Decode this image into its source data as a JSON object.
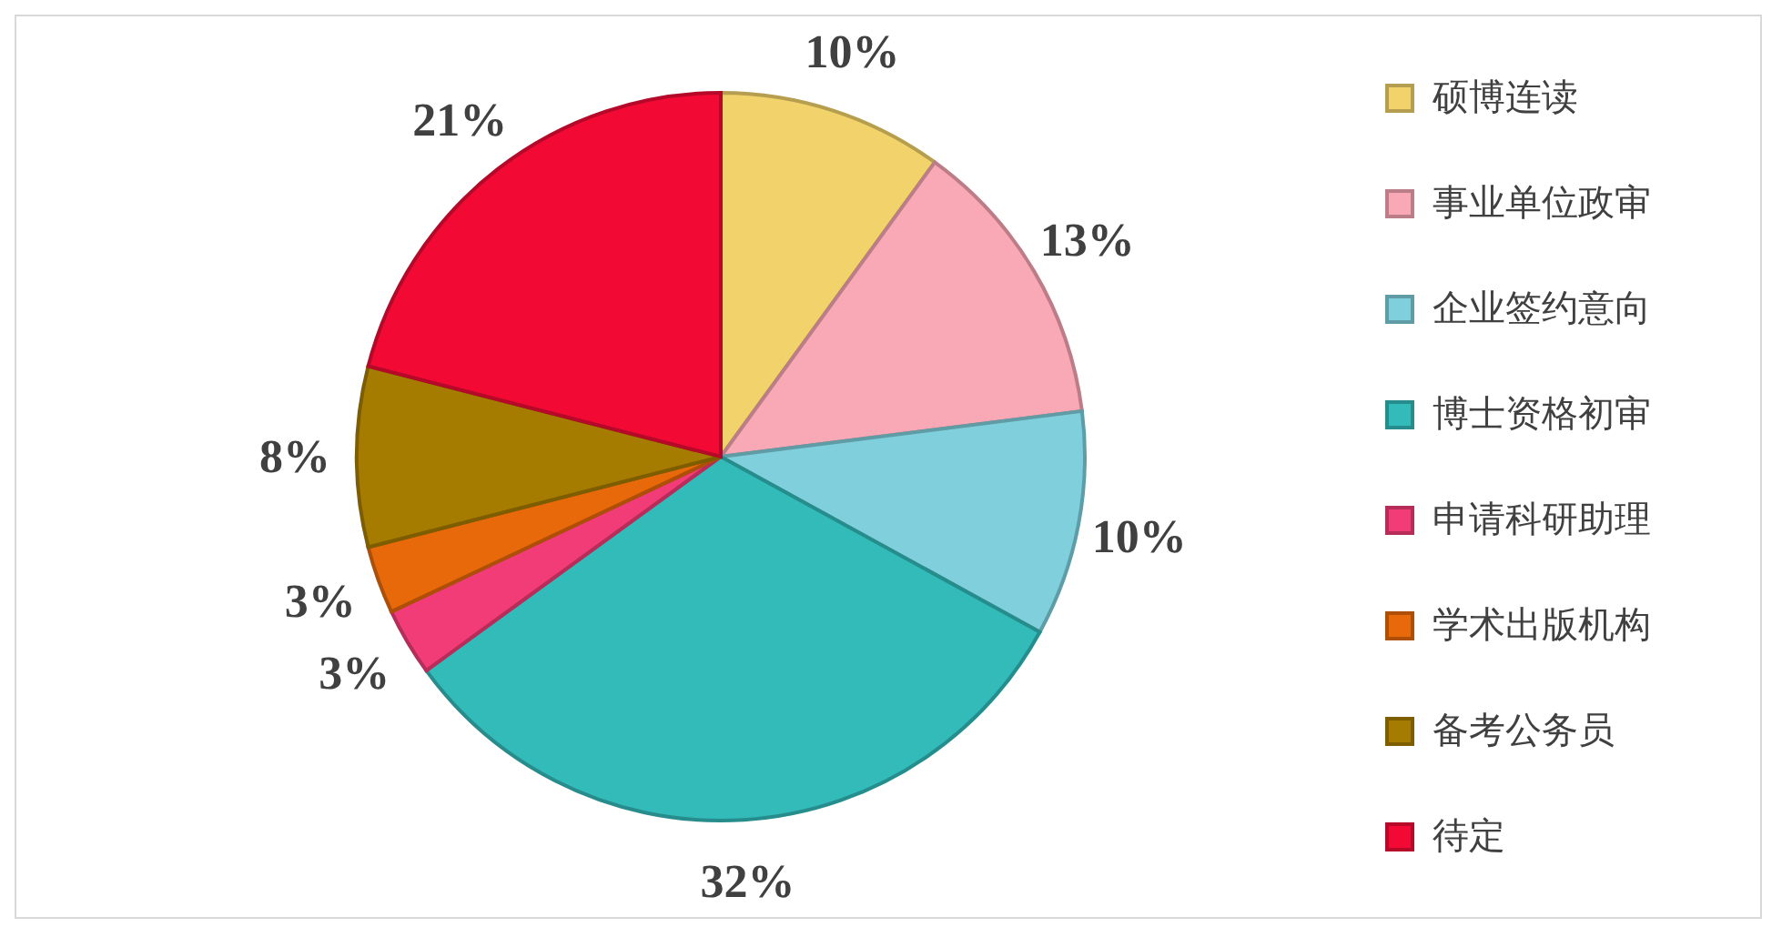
{
  "chart_data": {
    "type": "pie",
    "categories": [
      "硕博连读",
      "事业单位政审",
      "企业签约意向",
      "博士资格初审",
      "申请科研助理",
      "学术出版机构",
      "备考公务员",
      "待定"
    ],
    "values": [
      10,
      13,
      10,
      32,
      3,
      3,
      8,
      21
    ],
    "colors": [
      "#f2d36b",
      "#f9a8b5",
      "#7fd0dc",
      "#33bbba",
      "#f23c78",
      "#e8690a",
      "#a67c00",
      "#f20a35"
    ],
    "value_labels": [
      "10%",
      "13%",
      "10%",
      "32%",
      "3%",
      "3%",
      "8%",
      "21%"
    ],
    "legend": "right"
  }
}
